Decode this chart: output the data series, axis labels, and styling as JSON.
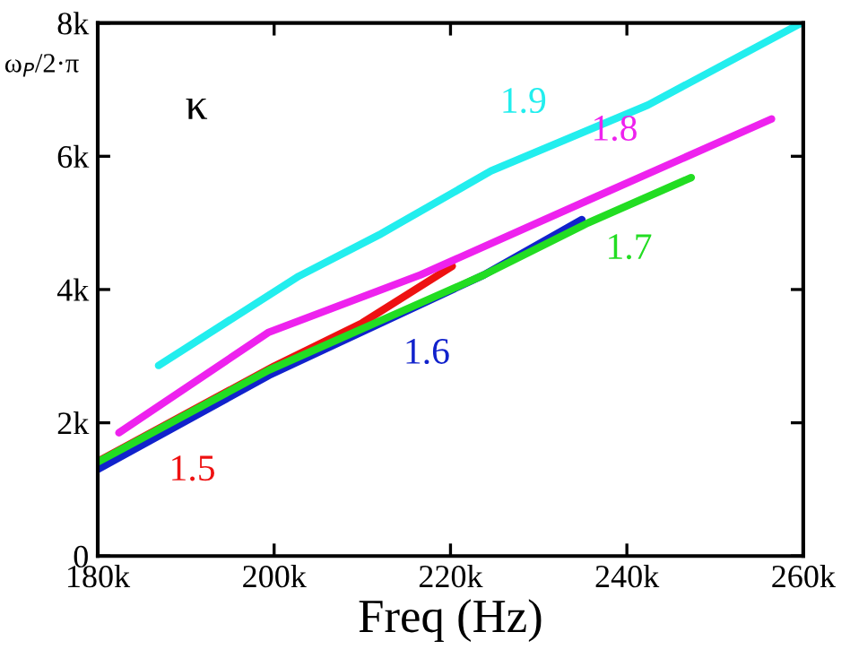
{
  "chart_data": {
    "type": "line",
    "xlabel": "Freq (Hz)",
    "ylabel": "ω$_{P}$/2·π",
    "annotations": [
      "κ"
    ],
    "xlim": [
      180000,
      260000
    ],
    "ylim": [
      0,
      8000
    ],
    "xticks": [
      {
        "value": 180000,
        "label": "180k"
      },
      {
        "value": 200000,
        "label": "200k"
      },
      {
        "value": 220000,
        "label": "220k"
      },
      {
        "value": 240000,
        "label": "240k"
      },
      {
        "value": 260000,
        "label": "260k"
      }
    ],
    "yticks": [
      0,
      {
        "value": 2000,
        "label": "2k"
      },
      {
        "value": 4000,
        "label": "4k"
      },
      {
        "value": 6000,
        "label": "6k"
      },
      {
        "value": 8000,
        "label": "8k"
      }
    ],
    "grid": false,
    "legend": false,
    "marker": "none",
    "line_style": "solid",
    "series": [
      {
        "name": "1.5",
        "color": "#ee1111",
        "x": [
          180000,
          200000,
          210000,
          220200
        ],
        "values": [
          1420,
          2850,
          3500,
          4350
        ]
      },
      {
        "name": "1.6",
        "color": "#1122cc",
        "x": [
          180000,
          199400,
          223800,
          234900
        ],
        "values": [
          1300,
          2710,
          4220,
          5050
        ]
      },
      {
        "name": "1.7",
        "color": "#22dd22",
        "x": [
          180000,
          199400,
          223800,
          235600,
          247300
        ],
        "values": [
          1410,
          2790,
          4220,
          5000,
          5680
        ]
      },
      {
        "name": "1.8",
        "color": "#ee22ee",
        "x": [
          182400,
          199400,
          216600,
          235600,
          256400
        ],
        "values": [
          1850,
          3360,
          4220,
          5340,
          6560
        ]
      },
      {
        "name": "1.9",
        "color": "#22eeee",
        "x": [
          186900,
          202800,
          211900,
          224600,
          242400,
          259800
        ],
        "values": [
          2860,
          4200,
          4820,
          5780,
          6770,
          8000
        ]
      }
    ]
  }
}
